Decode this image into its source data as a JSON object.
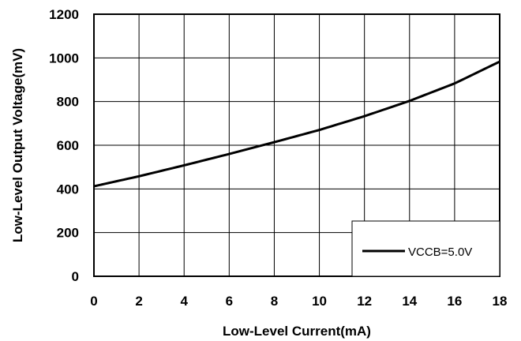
{
  "chart_data": {
    "type": "line",
    "title": "",
    "xlabel": "Low-Level Current(mA)",
    "ylabel": "Low-Level Output Voltage(mV)",
    "xlim": [
      0,
      18
    ],
    "ylim": [
      0,
      1200
    ],
    "xticks": [
      "0",
      "2",
      "4",
      "6",
      "8",
      "10",
      "12",
      "14",
      "16",
      "18"
    ],
    "yticks": [
      "0",
      "200",
      "400",
      "600",
      "800",
      "1000",
      "1200"
    ],
    "grid": true,
    "legend_position": "bottom-right",
    "series": [
      {
        "name": "VCCB=5.0V",
        "color": "#000000",
        "x": [
          0,
          2,
          4,
          6,
          8,
          10,
          12,
          14,
          16,
          18
        ],
        "y": [
          412,
          458,
          508,
          560,
          614,
          670,
          733,
          803,
          883,
          983
        ]
      }
    ]
  }
}
